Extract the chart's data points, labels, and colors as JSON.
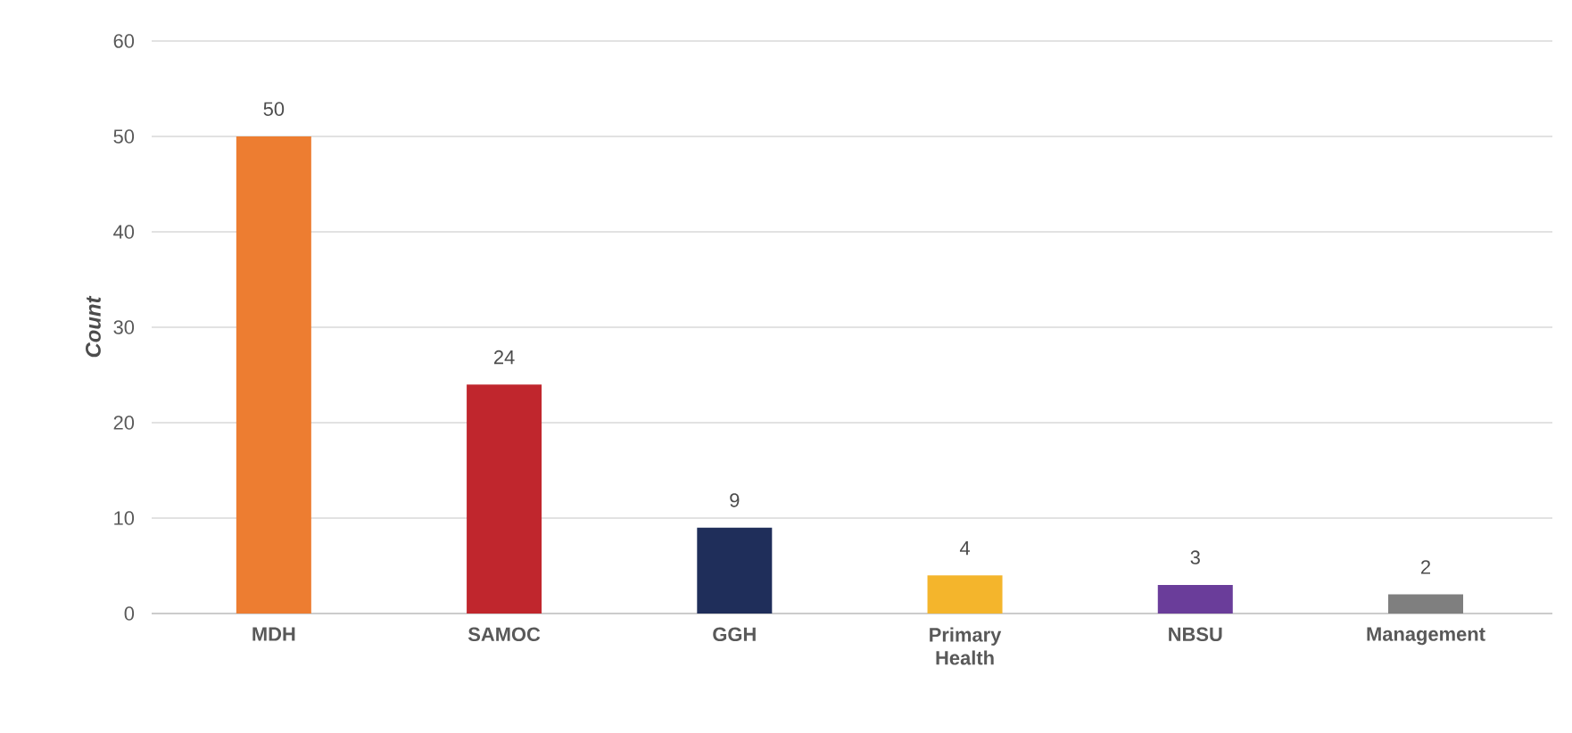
{
  "chart_data": {
    "type": "bar",
    "ylabel": "Count",
    "categories": [
      "MDH",
      "SAMOC",
      "GGH",
      "Primary Health",
      "NBSU",
      "Management"
    ],
    "values": [
      50,
      24,
      9,
      4,
      3,
      2
    ],
    "colors": [
      "#ed7d31",
      "#c0262d",
      "#1f2e5a",
      "#f4b52c",
      "#6a3d9a",
      "#7f7f7f"
    ],
    "ylim": [
      0,
      60
    ],
    "yticks": [
      0,
      10,
      20,
      30,
      40,
      50,
      60
    ],
    "grid": "y",
    "data_labels": true
  }
}
